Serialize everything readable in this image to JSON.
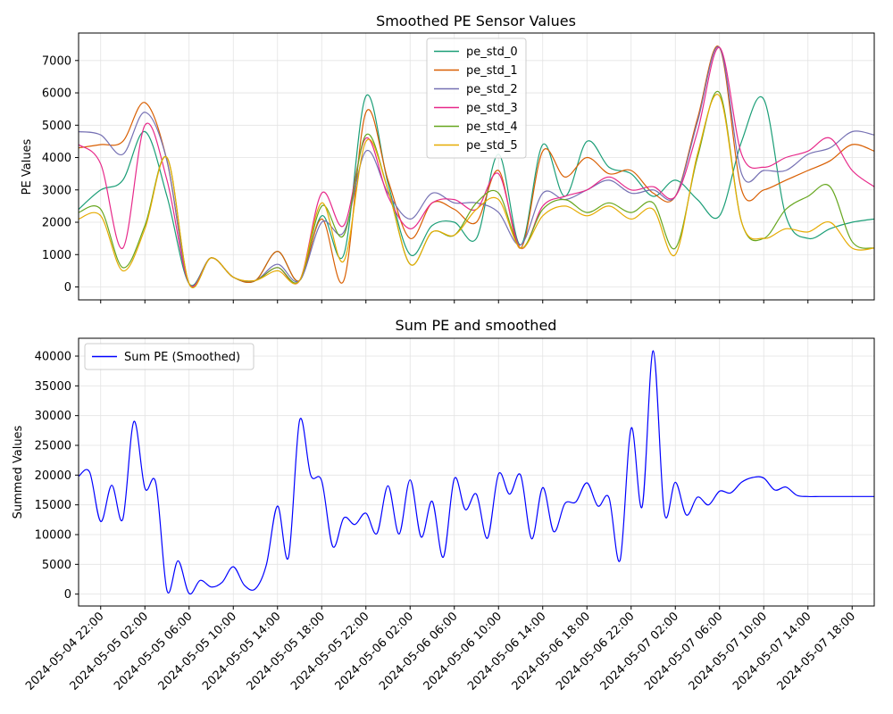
{
  "chart_data": [
    {
      "type": "line",
      "title": "Smoothed PE Sensor Values",
      "xlabel": "",
      "ylabel": "PE Values",
      "ylim": [
        -400,
        7850
      ],
      "yticks": [
        0,
        1000,
        2000,
        3000,
        4000,
        5000,
        6000,
        7000
      ],
      "grid": true,
      "legend_position": "top-center",
      "x": [
        "2024-05-04 20:00",
        "2024-05-04 22:00",
        "2024-05-05 00:00",
        "2024-05-05 02:00",
        "2024-05-05 04:00",
        "2024-05-05 06:00",
        "2024-05-05 08:00",
        "2024-05-05 10:00",
        "2024-05-05 12:00",
        "2024-05-05 14:00",
        "2024-05-05 16:00",
        "2024-05-05 18:00",
        "2024-05-05 20:00",
        "2024-05-05 22:00",
        "2024-05-06 00:00",
        "2024-05-06 02:00",
        "2024-05-06 04:00",
        "2024-05-06 06:00",
        "2024-05-06 08:00",
        "2024-05-06 10:00",
        "2024-05-06 12:00",
        "2024-05-06 14:00",
        "2024-05-06 16:00",
        "2024-05-06 18:00",
        "2024-05-06 20:00",
        "2024-05-06 22:00",
        "2024-05-07 00:00",
        "2024-05-07 02:00",
        "2024-05-07 04:00",
        "2024-05-07 06:00",
        "2024-05-07 08:00",
        "2024-05-07 10:00",
        "2024-05-07 12:00",
        "2024-05-07 14:00",
        "2024-05-07 16:00",
        "2024-05-07 18:00",
        "2024-05-07 20:00"
      ],
      "series": [
        {
          "name": "pe_std_0",
          "color": "#1b9e77",
          "values": [
            2400,
            3000,
            3300,
            4800,
            2800,
            100,
            900,
            300,
            200,
            1100,
            200,
            2200,
            1000,
            5900,
            3200,
            1000,
            1900,
            2000,
            1500,
            4100,
            1300,
            4400,
            2800,
            4500,
            3700,
            3500,
            2800,
            3300,
            2700,
            2200,
            4500,
            5800,
            2200,
            1500,
            1800,
            2000,
            2100
          ]
        },
        {
          "name": "pe_std_1",
          "color": "#d95f02",
          "values": [
            4300,
            4400,
            4500,
            5700,
            3900,
            100,
            900,
            300,
            200,
            1100,
            200,
            2100,
            200,
            5400,
            3300,
            1500,
            2600,
            2400,
            2000,
            3600,
            1200,
            4200,
            3400,
            4000,
            3500,
            3600,
            2900,
            2800,
            5200,
            7400,
            3000,
            3000,
            3300,
            3600,
            3900,
            4400,
            4200
          ]
        },
        {
          "name": "pe_std_2",
          "color": "#7570b3",
          "values": [
            4800,
            4700,
            4100,
            5400,
            3900,
            100,
            900,
            300,
            200,
            700,
            200,
            2000,
            1700,
            4200,
            2900,
            2100,
            2900,
            2600,
            2600,
            2300,
            1300,
            2900,
            2700,
            3000,
            3300,
            2900,
            3000,
            2800,
            5100,
            7400,
            3500,
            3600,
            3600,
            4100,
            4300,
            4800,
            4700
          ]
        },
        {
          "name": "pe_std_3",
          "color": "#e7298a",
          "values": [
            4400,
            3800,
            1200,
            5000,
            3300,
            100,
            900,
            300,
            200,
            600,
            200,
            2900,
            1900,
            4600,
            2800,
            1800,
            2600,
            2700,
            2400,
            3500,
            1200,
            2500,
            2800,
            3000,
            3400,
            3000,
            3100,
            2800,
            4800,
            7400,
            4100,
            3700,
            4000,
            4200,
            4600,
            3600,
            3100
          ]
        },
        {
          "name": "pe_std_4",
          "color": "#66a61e",
          "values": [
            2300,
            2400,
            600,
            1900,
            4000,
            100,
            900,
            300,
            200,
            600,
            200,
            2500,
            1600,
            4700,
            3000,
            700,
            1700,
            1600,
            2600,
            2900,
            1200,
            2400,
            2700,
            2300,
            2600,
            2300,
            2600,
            1200,
            4000,
            6000,
            2000,
            1500,
            2400,
            2800,
            3100,
            1400,
            1200
          ]
        },
        {
          "name": "pe_std_5",
          "color": "#e6ab02",
          "values": [
            2100,
            2200,
            500,
            1800,
            4000,
            100,
            900,
            300,
            200,
            500,
            200,
            2600,
            800,
            4500,
            3000,
            700,
            1700,
            1600,
            2400,
            2700,
            1200,
            2200,
            2500,
            2200,
            2500,
            2100,
            2400,
            1000,
            4100,
            5900,
            2000,
            1500,
            1800,
            1700,
            2000,
            1200,
            1200
          ]
        }
      ]
    },
    {
      "type": "line",
      "title": "Sum PE and smoothed",
      "xlabel": "",
      "ylabel": "Summed Values",
      "ylim": [
        -2000,
        43000
      ],
      "yticks": [
        0,
        5000,
        10000,
        15000,
        20000,
        25000,
        30000,
        35000,
        40000
      ],
      "grid": true,
      "legend_position": "top-left",
      "xtick_labels": [
        "2024-05-04 22:00",
        "2024-05-05 02:00",
        "2024-05-05 06:00",
        "2024-05-05 10:00",
        "2024-05-05 14:00",
        "2024-05-05 18:00",
        "2024-05-05 22:00",
        "2024-05-06 02:00",
        "2024-05-06 06:00",
        "2024-05-06 10:00",
        "2024-05-06 14:00",
        "2024-05-06 18:00",
        "2024-05-06 22:00",
        "2024-05-07 02:00",
        "2024-05-07 06:00",
        "2024-05-07 10:00",
        "2024-05-07 14:00",
        "2024-05-07 18:00"
      ],
      "x": [
        "2024-05-04 20:00",
        "2024-05-04 21:00",
        "2024-05-04 22:00",
        "2024-05-04 23:00",
        "2024-05-05 00:00",
        "2024-05-05 01:00",
        "2024-05-05 02:00",
        "2024-05-05 03:00",
        "2024-05-05 04:00",
        "2024-05-05 05:00",
        "2024-05-05 06:00",
        "2024-05-05 07:00",
        "2024-05-05 08:00",
        "2024-05-05 09:00",
        "2024-05-05 10:00",
        "2024-05-05 11:00",
        "2024-05-05 12:00",
        "2024-05-05 13:00",
        "2024-05-05 14:00",
        "2024-05-05 15:00",
        "2024-05-05 16:00",
        "2024-05-05 17:00",
        "2024-05-05 18:00",
        "2024-05-05 19:00",
        "2024-05-05 20:00",
        "2024-05-05 21:00",
        "2024-05-05 22:00",
        "2024-05-05 23:00",
        "2024-05-06 00:00",
        "2024-05-06 01:00",
        "2024-05-06 02:00",
        "2024-05-06 03:00",
        "2024-05-06 04:00",
        "2024-05-06 05:00",
        "2024-05-06 06:00",
        "2024-05-06 07:00",
        "2024-05-06 08:00",
        "2024-05-06 09:00",
        "2024-05-06 10:00",
        "2024-05-06 11:00",
        "2024-05-06 12:00",
        "2024-05-06 13:00",
        "2024-05-06 14:00",
        "2024-05-06 15:00",
        "2024-05-06 16:00",
        "2024-05-06 17:00",
        "2024-05-06 18:00",
        "2024-05-06 19:00",
        "2024-05-06 20:00",
        "2024-05-06 21:00",
        "2024-05-06 22:00",
        "2024-05-06 23:00",
        "2024-05-07 00:00",
        "2024-05-07 01:00",
        "2024-05-07 02:00",
        "2024-05-07 03:00",
        "2024-05-07 04:00",
        "2024-05-07 05:00",
        "2024-05-07 06:00",
        "2024-05-07 07:00",
        "2024-05-07 08:00",
        "2024-05-07 09:00",
        "2024-05-07 10:00",
        "2024-05-07 11:00",
        "2024-05-07 12:00",
        "2024-05-07 13:00",
        "2024-05-07 14:00",
        "2024-05-07 15:00",
        "2024-05-07 16:00",
        "2024-05-07 17:00",
        "2024-05-07 18:00",
        "2024-05-07 19:00",
        "2024-05-07 20:00"
      ],
      "series": [
        {
          "name": "Sum PE (Smoothed)",
          "color": "#0000ff",
          "values": [
            19800,
            20500,
            12200,
            18300,
            12600,
            29000,
            17800,
            18600,
            600,
            5600,
            100,
            2300,
            1200,
            2000,
            4600,
            1500,
            900,
            5000,
            14800,
            6200,
            29200,
            20000,
            19000,
            8000,
            12800,
            11700,
            13600,
            10200,
            18200,
            10100,
            19200,
            9600,
            15600,
            6200,
            19400,
            14200,
            16800,
            9400,
            20200,
            16800,
            20000,
            9300,
            17900,
            10500,
            15200,
            15500,
            18700,
            14800,
            16200,
            5700,
            27900,
            14700,
            40900,
            13700,
            18800,
            13300,
            16300,
            15000,
            17300,
            17000,
            18800,
            19600,
            19500,
            17500,
            18000,
            16600,
            16400,
            16400,
            16400,
            16400,
            16400,
            16400,
            16400
          ]
        }
      ]
    }
  ]
}
